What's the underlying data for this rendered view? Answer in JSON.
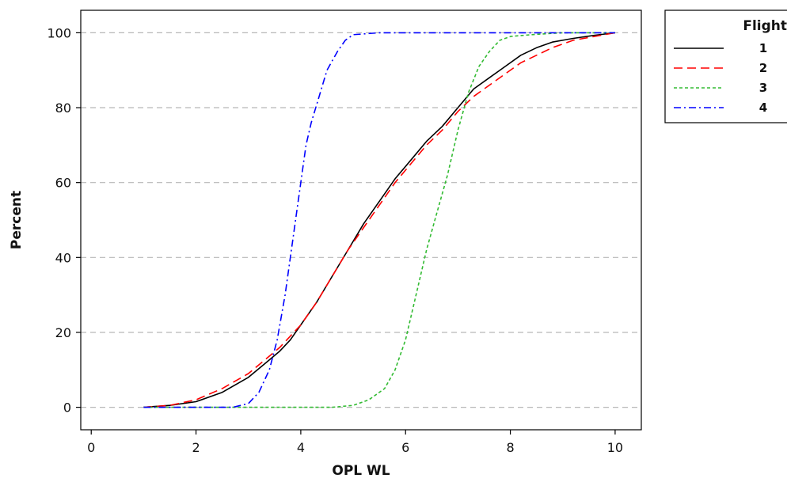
{
  "chart_data": {
    "type": "line",
    "title": "",
    "xlabel": "OPL WL",
    "ylabel": "Percent",
    "xlim": [
      -0.2,
      10.5
    ],
    "ylim": [
      -6,
      106
    ],
    "xticks": [
      0,
      2,
      4,
      6,
      8,
      10
    ],
    "yticks": [
      0,
      20,
      40,
      60,
      80,
      100
    ],
    "grid": "horizontal dashed at y ticks",
    "legend": {
      "title": "Flight",
      "position": "top-right outside plot"
    },
    "series": [
      {
        "name": "1",
        "color": "#000000",
        "dash": "solid",
        "points": [
          [
            1.0,
            0
          ],
          [
            1.5,
            0.5
          ],
          [
            2.0,
            1.5
          ],
          [
            2.5,
            4
          ],
          [
            3.0,
            8
          ],
          [
            3.3,
            11.5
          ],
          [
            3.6,
            15
          ],
          [
            3.8,
            18
          ],
          [
            4.0,
            22
          ],
          [
            4.3,
            28
          ],
          [
            4.6,
            35
          ],
          [
            4.9,
            42
          ],
          [
            5.2,
            49
          ],
          [
            5.5,
            55
          ],
          [
            5.8,
            61
          ],
          [
            6.1,
            66
          ],
          [
            6.4,
            71
          ],
          [
            6.7,
            75
          ],
          [
            7.0,
            80
          ],
          [
            7.3,
            85
          ],
          [
            7.6,
            88
          ],
          [
            7.9,
            91
          ],
          [
            8.2,
            94
          ],
          [
            8.5,
            96
          ],
          [
            8.8,
            97.5
          ],
          [
            9.2,
            98.5
          ],
          [
            9.6,
            99.3
          ],
          [
            10.0,
            100
          ]
        ]
      },
      {
        "name": "2",
        "color": "#ff0000",
        "dash": "long-dash",
        "points": [
          [
            1.0,
            0
          ],
          [
            1.5,
            0.5
          ],
          [
            2.0,
            2
          ],
          [
            2.5,
            5
          ],
          [
            3.0,
            9
          ],
          [
            3.3,
            12.5
          ],
          [
            3.6,
            16
          ],
          [
            3.8,
            19
          ],
          [
            4.0,
            22
          ],
          [
            4.3,
            28
          ],
          [
            4.6,
            35
          ],
          [
            4.9,
            42
          ],
          [
            5.2,
            48
          ],
          [
            5.5,
            54
          ],
          [
            5.8,
            60
          ],
          [
            6.1,
            65
          ],
          [
            6.4,
            70
          ],
          [
            6.7,
            74
          ],
          [
            7.0,
            79
          ],
          [
            7.3,
            83
          ],
          [
            7.6,
            86
          ],
          [
            7.9,
            89
          ],
          [
            8.2,
            92
          ],
          [
            8.5,
            94
          ],
          [
            8.8,
            96
          ],
          [
            9.2,
            98
          ],
          [
            9.6,
            99
          ],
          [
            10.0,
            100
          ]
        ]
      },
      {
        "name": "3",
        "color": "#33bb33",
        "dash": "short-dash",
        "points": [
          [
            1.0,
            0
          ],
          [
            4.6,
            0
          ],
          [
            5.0,
            0.5
          ],
          [
            5.3,
            2
          ],
          [
            5.6,
            5
          ],
          [
            5.8,
            10
          ],
          [
            6.0,
            18
          ],
          [
            6.2,
            30
          ],
          [
            6.4,
            42
          ],
          [
            6.6,
            52
          ],
          [
            6.8,
            62
          ],
          [
            7.0,
            74
          ],
          [
            7.2,
            84
          ],
          [
            7.4,
            91
          ],
          [
            7.6,
            95
          ],
          [
            7.8,
            98
          ],
          [
            8.0,
            99
          ],
          [
            8.4,
            99.5
          ],
          [
            9.0,
            100
          ],
          [
            10.0,
            100
          ]
        ]
      },
      {
        "name": "4",
        "color": "#0000ff",
        "dash": "dash-dot",
        "points": [
          [
            1.0,
            0
          ],
          [
            2.7,
            0
          ],
          [
            3.0,
            1
          ],
          [
            3.2,
            4
          ],
          [
            3.4,
            10
          ],
          [
            3.55,
            18
          ],
          [
            3.7,
            30
          ],
          [
            3.85,
            45
          ],
          [
            4.0,
            60
          ],
          [
            4.1,
            70
          ],
          [
            4.2,
            76
          ],
          [
            4.35,
            83
          ],
          [
            4.5,
            90
          ],
          [
            4.7,
            95
          ],
          [
            4.85,
            98
          ],
          [
            5.0,
            99.5
          ],
          [
            5.5,
            100
          ],
          [
            10.0,
            100
          ]
        ]
      }
    ]
  }
}
